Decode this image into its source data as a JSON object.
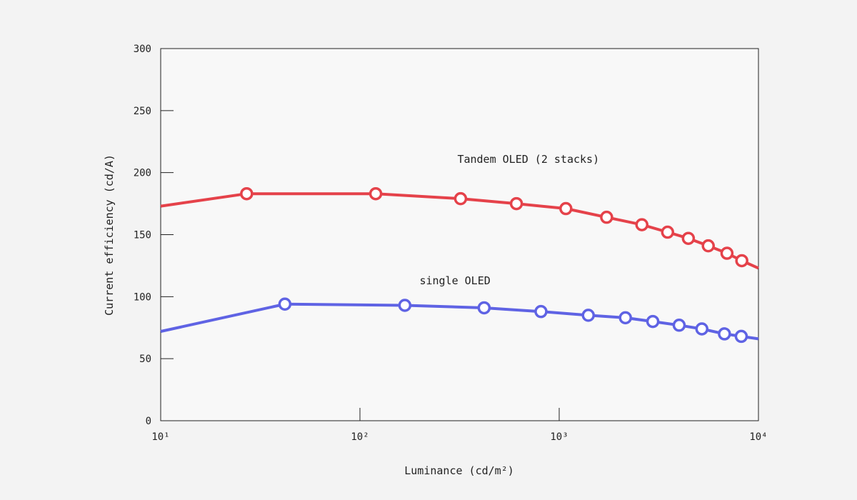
{
  "chart_data": {
    "type": "line",
    "x_scale": "log",
    "xlabel": "Luminance (cd/m²)",
    "ylabel": "Current efficiency (cd/A)",
    "xlim": [
      10,
      10000
    ],
    "ylim": [
      0,
      300
    ],
    "x_ticks": [
      {
        "value": 10,
        "label": "10¹"
      },
      {
        "value": 100,
        "label": "10²"
      },
      {
        "value": 1000,
        "label": "10³"
      },
      {
        "value": 10000,
        "label": "10⁴"
      }
    ],
    "y_ticks": [
      0,
      50,
      100,
      150,
      200,
      250,
      300
    ],
    "grid": false,
    "legend": "none",
    "series": [
      {
        "name": "Tandem OLED (2 stacks)",
        "color": "#e5424a",
        "line_start": {
          "x": 10,
          "y": 173
        },
        "line_end": {
          "x": 10000,
          "y": 123
        },
        "points": [
          {
            "x": 27,
            "y": 183
          },
          {
            "x": 120,
            "y": 183
          },
          {
            "x": 320,
            "y": 179
          },
          {
            "x": 610,
            "y": 175
          },
          {
            "x": 1080,
            "y": 171
          },
          {
            "x": 1730,
            "y": 164
          },
          {
            "x": 2600,
            "y": 158
          },
          {
            "x": 3500,
            "y": 152
          },
          {
            "x": 4450,
            "y": 147
          },
          {
            "x": 5600,
            "y": 141
          },
          {
            "x": 6950,
            "y": 135
          },
          {
            "x": 8250,
            "y": 129
          }
        ]
      },
      {
        "name": "single OLED",
        "color": "#5f63e4",
        "line_start": {
          "x": 10,
          "y": 72
        },
        "line_end": {
          "x": 10000,
          "y": 66
        },
        "points": [
          {
            "x": 42,
            "y": 94
          },
          {
            "x": 168,
            "y": 93
          },
          {
            "x": 420,
            "y": 91
          },
          {
            "x": 810,
            "y": 88
          },
          {
            "x": 1400,
            "y": 85
          },
          {
            "x": 2150,
            "y": 83
          },
          {
            "x": 2950,
            "y": 80
          },
          {
            "x": 4000,
            "y": 77
          },
          {
            "x": 5200,
            "y": 74
          },
          {
            "x": 6750,
            "y": 70
          },
          {
            "x": 8200,
            "y": 68
          }
        ]
      }
    ],
    "annotations": [
      {
        "text": "Tandem OLED (2 stacks)",
        "x": 700,
        "y": 208
      },
      {
        "text": "single OLED",
        "x": 300,
        "y": 110
      }
    ]
  }
}
